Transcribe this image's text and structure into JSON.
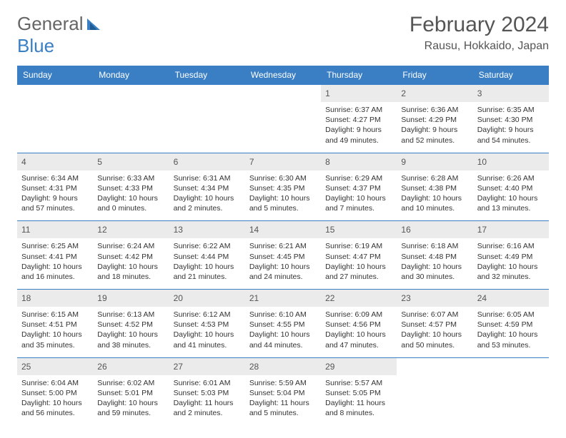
{
  "logo": {
    "general": "General",
    "blue": "Blue"
  },
  "title": "February 2024",
  "location": "Rausu, Hokkaido, Japan",
  "colors": {
    "header_bg": "#3a7fc4",
    "header_text": "#ffffff",
    "daynum_bg": "#ebebeb",
    "border": "#3a7fc4",
    "text": "#333333",
    "title_text": "#555555"
  },
  "weekdays": [
    "Sunday",
    "Monday",
    "Tuesday",
    "Wednesday",
    "Thursday",
    "Friday",
    "Saturday"
  ],
  "weeks": [
    [
      null,
      null,
      null,
      null,
      {
        "n": "1",
        "sunrise": "Sunrise: 6:37 AM",
        "sunset": "Sunset: 4:27 PM",
        "day1": "Daylight: 9 hours",
        "day2": "and 49 minutes."
      },
      {
        "n": "2",
        "sunrise": "Sunrise: 6:36 AM",
        "sunset": "Sunset: 4:29 PM",
        "day1": "Daylight: 9 hours",
        "day2": "and 52 minutes."
      },
      {
        "n": "3",
        "sunrise": "Sunrise: 6:35 AM",
        "sunset": "Sunset: 4:30 PM",
        "day1": "Daylight: 9 hours",
        "day2": "and 54 minutes."
      }
    ],
    [
      {
        "n": "4",
        "sunrise": "Sunrise: 6:34 AM",
        "sunset": "Sunset: 4:31 PM",
        "day1": "Daylight: 9 hours",
        "day2": "and 57 minutes."
      },
      {
        "n": "5",
        "sunrise": "Sunrise: 6:33 AM",
        "sunset": "Sunset: 4:33 PM",
        "day1": "Daylight: 10 hours",
        "day2": "and 0 minutes."
      },
      {
        "n": "6",
        "sunrise": "Sunrise: 6:31 AM",
        "sunset": "Sunset: 4:34 PM",
        "day1": "Daylight: 10 hours",
        "day2": "and 2 minutes."
      },
      {
        "n": "7",
        "sunrise": "Sunrise: 6:30 AM",
        "sunset": "Sunset: 4:35 PM",
        "day1": "Daylight: 10 hours",
        "day2": "and 5 minutes."
      },
      {
        "n": "8",
        "sunrise": "Sunrise: 6:29 AM",
        "sunset": "Sunset: 4:37 PM",
        "day1": "Daylight: 10 hours",
        "day2": "and 7 minutes."
      },
      {
        "n": "9",
        "sunrise": "Sunrise: 6:28 AM",
        "sunset": "Sunset: 4:38 PM",
        "day1": "Daylight: 10 hours",
        "day2": "and 10 minutes."
      },
      {
        "n": "10",
        "sunrise": "Sunrise: 6:26 AM",
        "sunset": "Sunset: 4:40 PM",
        "day1": "Daylight: 10 hours",
        "day2": "and 13 minutes."
      }
    ],
    [
      {
        "n": "11",
        "sunrise": "Sunrise: 6:25 AM",
        "sunset": "Sunset: 4:41 PM",
        "day1": "Daylight: 10 hours",
        "day2": "and 16 minutes."
      },
      {
        "n": "12",
        "sunrise": "Sunrise: 6:24 AM",
        "sunset": "Sunset: 4:42 PM",
        "day1": "Daylight: 10 hours",
        "day2": "and 18 minutes."
      },
      {
        "n": "13",
        "sunrise": "Sunrise: 6:22 AM",
        "sunset": "Sunset: 4:44 PM",
        "day1": "Daylight: 10 hours",
        "day2": "and 21 minutes."
      },
      {
        "n": "14",
        "sunrise": "Sunrise: 6:21 AM",
        "sunset": "Sunset: 4:45 PM",
        "day1": "Daylight: 10 hours",
        "day2": "and 24 minutes."
      },
      {
        "n": "15",
        "sunrise": "Sunrise: 6:19 AM",
        "sunset": "Sunset: 4:47 PM",
        "day1": "Daylight: 10 hours",
        "day2": "and 27 minutes."
      },
      {
        "n": "16",
        "sunrise": "Sunrise: 6:18 AM",
        "sunset": "Sunset: 4:48 PM",
        "day1": "Daylight: 10 hours",
        "day2": "and 30 minutes."
      },
      {
        "n": "17",
        "sunrise": "Sunrise: 6:16 AM",
        "sunset": "Sunset: 4:49 PM",
        "day1": "Daylight: 10 hours",
        "day2": "and 32 minutes."
      }
    ],
    [
      {
        "n": "18",
        "sunrise": "Sunrise: 6:15 AM",
        "sunset": "Sunset: 4:51 PM",
        "day1": "Daylight: 10 hours",
        "day2": "and 35 minutes."
      },
      {
        "n": "19",
        "sunrise": "Sunrise: 6:13 AM",
        "sunset": "Sunset: 4:52 PM",
        "day1": "Daylight: 10 hours",
        "day2": "and 38 minutes."
      },
      {
        "n": "20",
        "sunrise": "Sunrise: 6:12 AM",
        "sunset": "Sunset: 4:53 PM",
        "day1": "Daylight: 10 hours",
        "day2": "and 41 minutes."
      },
      {
        "n": "21",
        "sunrise": "Sunrise: 6:10 AM",
        "sunset": "Sunset: 4:55 PM",
        "day1": "Daylight: 10 hours",
        "day2": "and 44 minutes."
      },
      {
        "n": "22",
        "sunrise": "Sunrise: 6:09 AM",
        "sunset": "Sunset: 4:56 PM",
        "day1": "Daylight: 10 hours",
        "day2": "and 47 minutes."
      },
      {
        "n": "23",
        "sunrise": "Sunrise: 6:07 AM",
        "sunset": "Sunset: 4:57 PM",
        "day1": "Daylight: 10 hours",
        "day2": "and 50 minutes."
      },
      {
        "n": "24",
        "sunrise": "Sunrise: 6:05 AM",
        "sunset": "Sunset: 4:59 PM",
        "day1": "Daylight: 10 hours",
        "day2": "and 53 minutes."
      }
    ],
    [
      {
        "n": "25",
        "sunrise": "Sunrise: 6:04 AM",
        "sunset": "Sunset: 5:00 PM",
        "day1": "Daylight: 10 hours",
        "day2": "and 56 minutes."
      },
      {
        "n": "26",
        "sunrise": "Sunrise: 6:02 AM",
        "sunset": "Sunset: 5:01 PM",
        "day1": "Daylight: 10 hours",
        "day2": "and 59 minutes."
      },
      {
        "n": "27",
        "sunrise": "Sunrise: 6:01 AM",
        "sunset": "Sunset: 5:03 PM",
        "day1": "Daylight: 11 hours",
        "day2": "and 2 minutes."
      },
      {
        "n": "28",
        "sunrise": "Sunrise: 5:59 AM",
        "sunset": "Sunset: 5:04 PM",
        "day1": "Daylight: 11 hours",
        "day2": "and 5 minutes."
      },
      {
        "n": "29",
        "sunrise": "Sunrise: 5:57 AM",
        "sunset": "Sunset: 5:05 PM",
        "day1": "Daylight: 11 hours",
        "day2": "and 8 minutes."
      },
      null,
      null
    ]
  ]
}
